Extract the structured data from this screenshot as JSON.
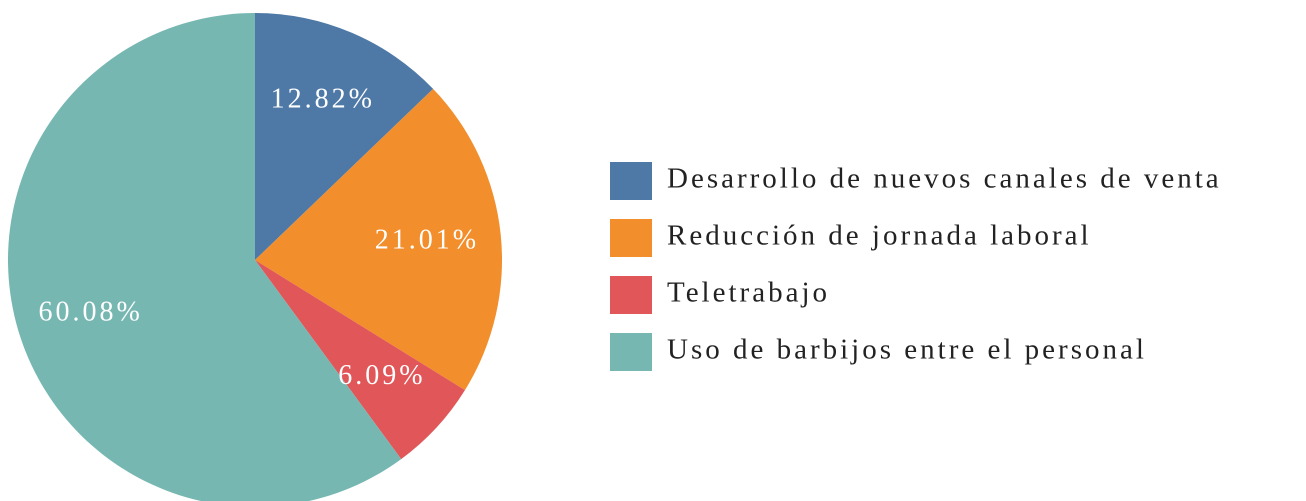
{
  "chart_data": {
    "type": "pie",
    "categories": [
      "Desarrollo de nuevos canales de venta",
      "Reducción de jornada laboral",
      "Teletrabajo",
      "Uso de barbijos entre el personal"
    ],
    "values": [
      12.82,
      21.01,
      6.09,
      60.08
    ],
    "value_labels": [
      "12.82%",
      "21.01%",
      "6.09%",
      "60.08%"
    ],
    "colors": [
      "#4e79a7",
      "#f28e2b",
      "#e15759",
      "#76b7b2"
    ],
    "legend": "right"
  }
}
